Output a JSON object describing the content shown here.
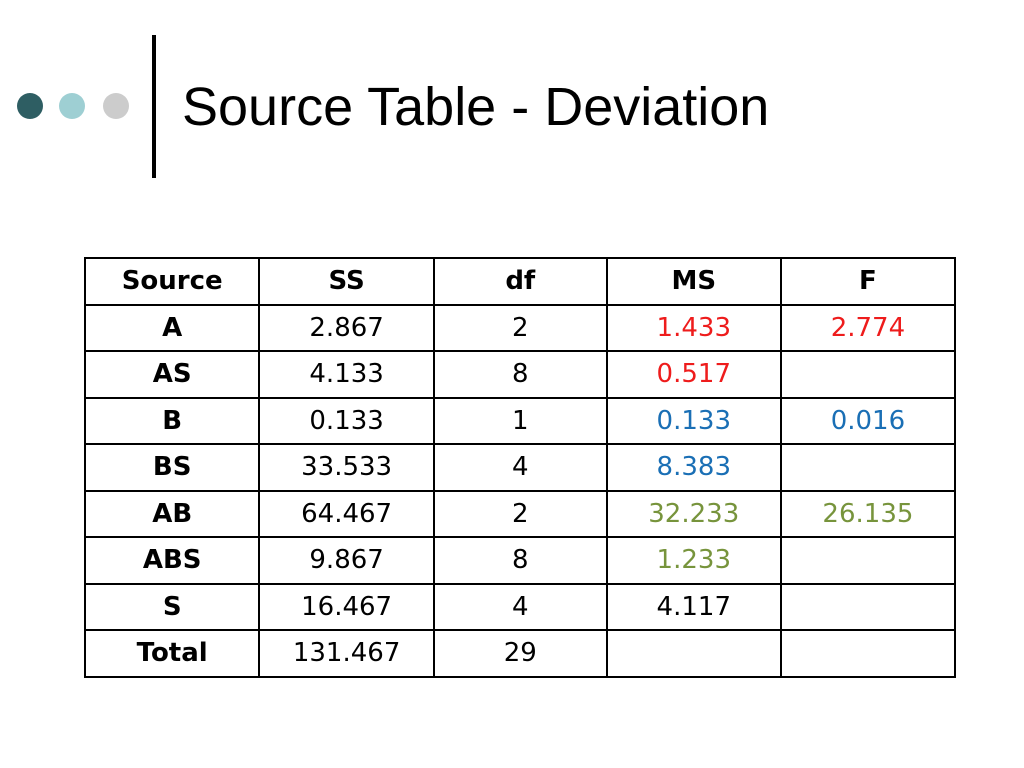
{
  "header": {
    "title": "Source Table - Deviation"
  },
  "table": {
    "columns": [
      "Source",
      "SS",
      "df",
      "MS",
      "F"
    ],
    "rows": [
      [
        "A",
        2.867,
        2,
        1.433,
        2.774
      ],
      [
        "AS",
        4.133,
        8,
        0.517,
        null
      ],
      [
        "B",
        0.133,
        1,
        0.133,
        0.016
      ],
      [
        "BS",
        33.533,
        4,
        8.383,
        null
      ],
      [
        "AB",
        64.467,
        2,
        32.233,
        26.135
      ],
      [
        "ABS",
        9.867,
        8,
        1.233,
        null
      ],
      [
        "S",
        16.467,
        4,
        4.117,
        null
      ],
      [
        "Total",
        131.467,
        29,
        null,
        null
      ]
    ]
  }
}
